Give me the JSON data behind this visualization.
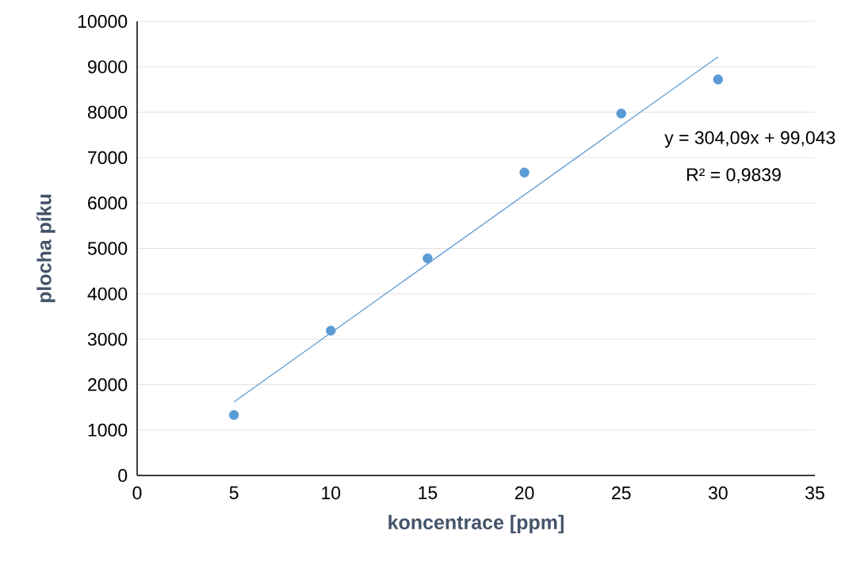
{
  "chart_data": {
    "type": "scatter",
    "xlabel": "koncentrace [ppm]",
    "ylabel": "plocha píku",
    "x": [
      5,
      10,
      15,
      20,
      25,
      30
    ],
    "series": [
      {
        "color": "#5b9bd5",
        "marker": "circle",
        "values": [
          1330,
          3190,
          4780,
          6670,
          7970,
          8720
        ]
      },
      {
        "type": "line",
        "color": "#5b9bd5",
        "x": [
          5,
          30
        ],
        "values": [
          1620,
          9220
        ],
        "line_style": "solid"
      }
    ],
    "annotations": [
      "y = 304,09x + 99,043",
      "R² = 0,9839"
    ],
    "xlim": [
      0,
      35
    ],
    "xticks": [
      0,
      5,
      10,
      15,
      20,
      25,
      30,
      35
    ],
    "ylim": [
      0,
      10000
    ],
    "yticks": [
      0,
      1000,
      2000,
      3000,
      4000,
      5000,
      6000,
      7000,
      8000,
      9000,
      10000
    ],
    "grid": "y"
  }
}
